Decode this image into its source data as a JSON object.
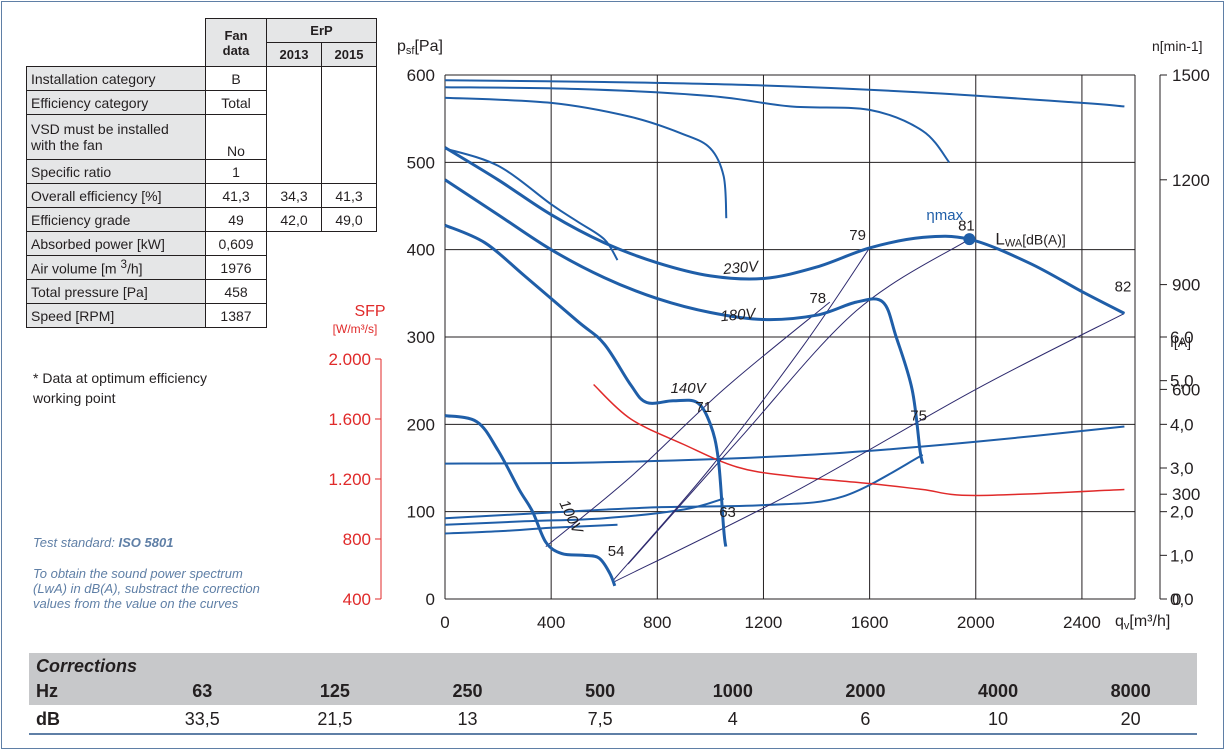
{
  "spec_table": {
    "header_fan": "Fan",
    "header_data": "data",
    "header_erp": "ErP",
    "header_2013": "2013",
    "header_2015": "2015",
    "rows": [
      {
        "label": "Installation category",
        "fan": "B",
        "y2013": "",
        "y2015": ""
      },
      {
        "label": "Efficiency category",
        "fan": "Total",
        "y2013": "",
        "y2015": ""
      },
      {
        "label": "VSD must be installed",
        "label2": "with the fan",
        "fan": "No",
        "y2013": "",
        "y2015": ""
      },
      {
        "label": "Specific ratio",
        "fan": "1",
        "y2013": "",
        "y2015": ""
      },
      {
        "label": "Overall efficiency [%]",
        "fan": "41,3",
        "y2013": "34,3",
        "y2015": "41,3"
      },
      {
        "label": "Efficiency grade",
        "fan": "49",
        "y2013": "42,0",
        "y2015": "49,0"
      },
      {
        "label": "Absorbed power [kW]",
        "fan": "0,609"
      },
      {
        "label": "Air volume [m",
        "sup": "3",
        "label_end": "/h]",
        "fan": "1976"
      },
      {
        "label": "Total pressure [Pa]",
        "fan": "458"
      },
      {
        "label": "Speed [RPM]",
        "fan": "1387"
      }
    ]
  },
  "footnote": "* Data at optimum efficiency working point",
  "test_standard_prefix": "Test standard: ",
  "test_standard": "ISO 5801",
  "correction_note": "To obtain the sound power spectrum (LwA) in dB(A), substract the correction values from the value on the curves",
  "corrections": {
    "title": "Corrections",
    "hz_label": "Hz",
    "db_label": "dB",
    "hz": [
      "63",
      "125",
      "250",
      "500",
      "1000",
      "2000",
      "4000",
      "8000"
    ],
    "db": [
      "33,5",
      "21,5",
      "13",
      "7,5",
      "4",
      "6",
      "10",
      "20"
    ]
  },
  "chart_data": {
    "type": "line",
    "xlabel": "qv[m³/h]",
    "ylabel": "psf[Pa]",
    "xlim": [
      0,
      2600
    ],
    "ylim": [
      0,
      600
    ],
    "xticks": [
      "0",
      "400",
      "800",
      "1200",
      "1600",
      "2000",
      "2400"
    ],
    "yticks": [
      "0",
      "100",
      "200",
      "300",
      "400",
      "500",
      "600"
    ],
    "rpm_axis": {
      "label": "n[min-1]",
      "ticks": [
        "0",
        "300",
        "600",
        "900",
        "1200",
        "1500"
      ]
    },
    "current_axis": {
      "label": "I[A]",
      "ticks": [
        "0,0",
        "1,0",
        "2,0",
        "3,0",
        "4,0",
        "5,0",
        "6,0"
      ]
    },
    "sfp_axis": {
      "label": "SFP",
      "unit": "[W/m³/s]",
      "ticks": [
        "400",
        "800",
        "1.200",
        "1.600",
        "2.000"
      ]
    },
    "colors": {
      "curve": "#1f5ea8",
      "sfp": "#e02a2a",
      "noise": "#2e2a6e",
      "grid": "#231f20"
    },
    "pressure_curves": [
      {
        "name": "230V",
        "points": [
          [
            0,
            517
          ],
          [
            200,
            480
          ],
          [
            400,
            440
          ],
          [
            600,
            408
          ],
          [
            800,
            385
          ],
          [
            1000,
            370
          ],
          [
            1200,
            367
          ],
          [
            1400,
            380
          ],
          [
            1600,
            402
          ],
          [
            1800,
            414
          ],
          [
            1976,
            412
          ],
          [
            2200,
            385
          ],
          [
            2400,
            352
          ],
          [
            2560,
            327
          ]
        ]
      },
      {
        "name": "180V",
        "points": [
          [
            0,
            480
          ],
          [
            200,
            440
          ],
          [
            400,
            400
          ],
          [
            600,
            368
          ],
          [
            800,
            344
          ],
          [
            1000,
            328
          ],
          [
            1200,
            320
          ],
          [
            1400,
            325
          ],
          [
            1550,
            340
          ],
          [
            1650,
            340
          ],
          [
            1700,
            300
          ],
          [
            1760,
            240
          ],
          [
            1790,
            170
          ],
          [
            1800,
            155
          ]
        ]
      },
      {
        "name": "140V",
        "points": [
          [
            0,
            428
          ],
          [
            150,
            408
          ],
          [
            300,
            370
          ],
          [
            500,
            318
          ],
          [
            600,
            292
          ],
          [
            700,
            245
          ],
          [
            760,
            225
          ],
          [
            860,
            227
          ],
          [
            950,
            225
          ],
          [
            1000,
            200
          ],
          [
            1030,
            160
          ],
          [
            1050,
            80
          ],
          [
            1058,
            60
          ]
        ]
      },
      {
        "name": "100V",
        "points": [
          [
            0,
            210
          ],
          [
            120,
            203
          ],
          [
            200,
            170
          ],
          [
            280,
            125
          ],
          [
            330,
            100
          ],
          [
            380,
            65
          ],
          [
            440,
            52
          ],
          [
            520,
            50
          ],
          [
            580,
            47
          ],
          [
            620,
            30
          ],
          [
            640,
            15
          ]
        ]
      }
    ],
    "efficiency_point": {
      "label": "ηmax",
      "x": 1976,
      "y": 412
    },
    "noise_curves": [
      {
        "label": "79",
        "x": 1600,
        "y": 402
      },
      {
        "label": "78",
        "x": 1450,
        "y": 330
      },
      {
        "label": "71",
        "x": 1020,
        "y": 205
      },
      {
        "label": "75",
        "x": 1830,
        "y": 195
      },
      {
        "label": "63",
        "x": 1110,
        "y": 85
      },
      {
        "label": "54",
        "x": 690,
        "y": 40
      },
      {
        "label": "82",
        "x": 2600,
        "y": 343
      },
      {
        "label": "81",
        "x": 2010,
        "y": 413
      }
    ],
    "lwa_label": "LWA[dB(A)]",
    "speed_curves": [
      {
        "points": [
          [
            0,
            1485
          ],
          [
            600,
            1480
          ],
          [
            1200,
            1470
          ],
          [
            1800,
            1450
          ],
          [
            2400,
            1420
          ],
          [
            2560,
            1410
          ]
        ]
      },
      {
        "points": [
          [
            0,
            1465
          ],
          [
            500,
            1460
          ],
          [
            1000,
            1440
          ],
          [
            1300,
            1410
          ],
          [
            1600,
            1400
          ],
          [
            1800,
            1340
          ],
          [
            1900,
            1250
          ]
        ]
      },
      {
        "points": [
          [
            0,
            1435
          ],
          [
            400,
            1420
          ],
          [
            700,
            1380
          ],
          [
            900,
            1330
          ],
          [
            1000,
            1290
          ],
          [
            1050,
            1210
          ],
          [
            1060,
            1090
          ]
        ]
      },
      {
        "points": [
          [
            0,
            1290
          ],
          [
            200,
            1240
          ],
          [
            400,
            1130
          ],
          [
            500,
            1080
          ],
          [
            600,
            1030
          ],
          [
            650,
            970
          ]
        ]
      }
    ],
    "current_curves": [
      {
        "points": [
          [
            0,
            3.1
          ],
          [
            500,
            3.12
          ],
          [
            1000,
            3.2
          ],
          [
            1500,
            3.35
          ],
          [
            2000,
            3.6
          ],
          [
            2560,
            3.95
          ]
        ]
      },
      {
        "points": [
          [
            0,
            1.85
          ],
          [
            400,
            1.98
          ],
          [
            800,
            2.1
          ],
          [
            1200,
            2.15
          ],
          [
            1500,
            2.35
          ],
          [
            1800,
            3.3
          ]
        ]
      },
      {
        "points": [
          [
            0,
            1.7
          ],
          [
            300,
            1.78
          ],
          [
            600,
            1.85
          ],
          [
            900,
            2.05
          ],
          [
            1050,
            2.3
          ]
        ]
      },
      {
        "points": [
          [
            0,
            1.5
          ],
          [
            200,
            1.55
          ],
          [
            400,
            1.63
          ],
          [
            650,
            1.7
          ]
        ]
      }
    ],
    "sfp_curve": {
      "points": [
        [
          560,
          1830
        ],
        [
          700,
          1600
        ],
        [
          900,
          1430
        ],
        [
          1100,
          1280
        ],
        [
          1300,
          1220
        ],
        [
          1600,
          1170
        ],
        [
          1800,
          1130
        ],
        [
          2000,
          1090
        ],
        [
          2560,
          1130
        ]
      ]
    }
  }
}
